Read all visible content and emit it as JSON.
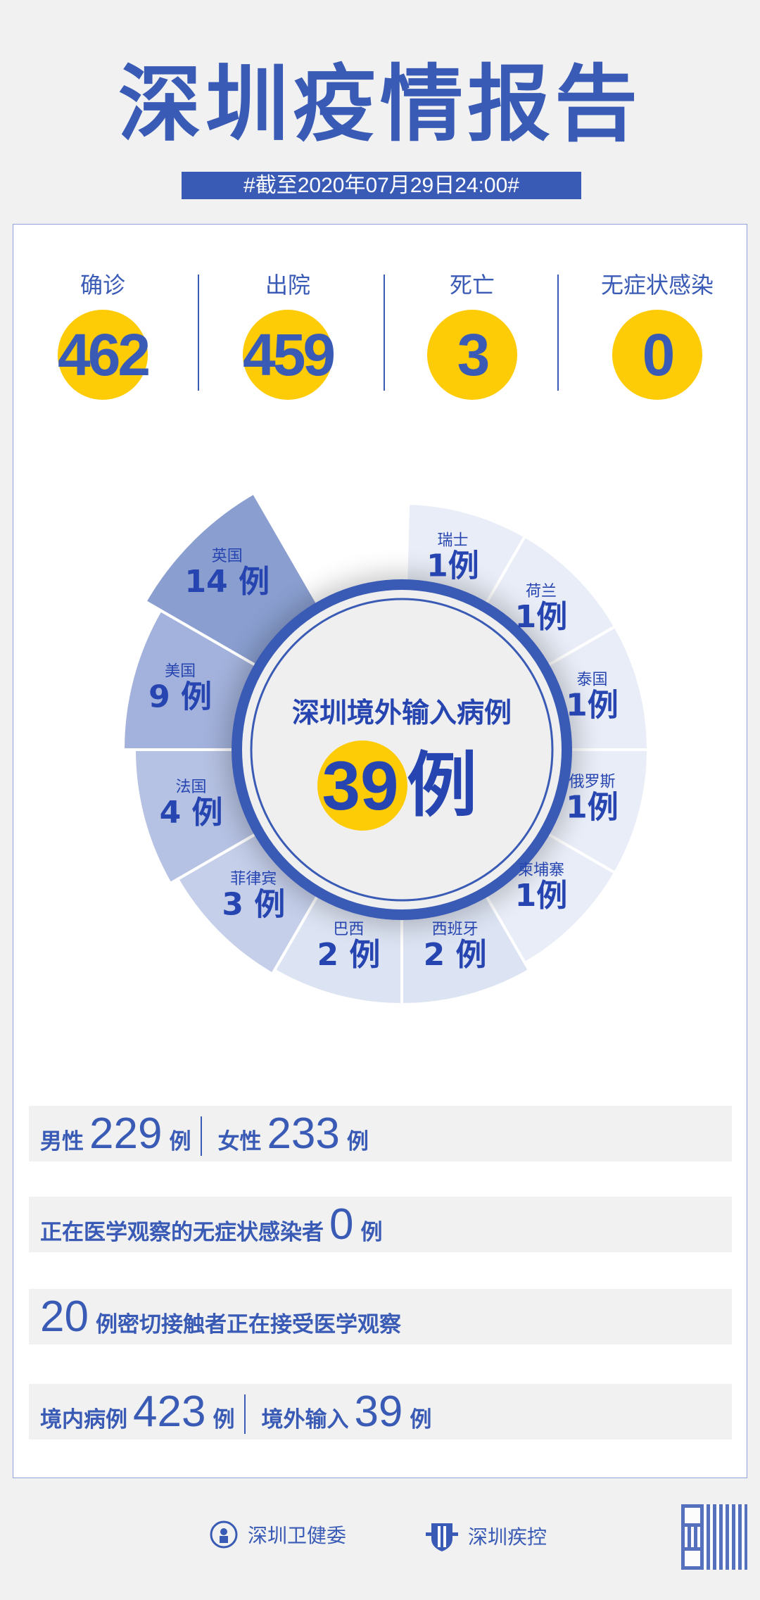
{
  "title": "深圳疫情报告",
  "date_banner": "#截至2020年07月29日24:00#",
  "stats": [
    {
      "label": "确诊",
      "value": "462"
    },
    {
      "label": "出院",
      "value": "459"
    },
    {
      "label": "死亡",
      "value": "3"
    },
    {
      "label": "无症状感染",
      "value": "0"
    }
  ],
  "imported": {
    "title": "深圳境外输入病例",
    "total": "39",
    "unit": "例",
    "countries": [
      {
        "name": "瑞士",
        "value": 1
      },
      {
        "name": "荷兰",
        "value": 1
      },
      {
        "name": "泰国",
        "value": 1
      },
      {
        "name": "俄罗斯",
        "value": 1
      },
      {
        "name": "柬埔寨",
        "value": 1
      },
      {
        "name": "西班牙",
        "value": 2
      },
      {
        "name": "巴西",
        "value": 2
      },
      {
        "name": "菲律宾",
        "value": 3
      },
      {
        "name": "法国",
        "value": 4
      },
      {
        "name": "美国",
        "value": 9
      },
      {
        "name": "英国",
        "value": 14
      }
    ],
    "colors": {
      "ring": "#3a5bb5",
      "highlight": "#fecb07",
      "text": "#2645b0"
    }
  },
  "rows": {
    "male_label": "男性",
    "male": "229",
    "female_label": "女性",
    "female": "233",
    "unit": "例",
    "asym_label": "正在医学观察的无症状感染者",
    "asym": "0",
    "contacts": "20",
    "contacts_label": "例密切接触者正在接受医学观察",
    "local_label": "境内病例",
    "local": "423",
    "import_label": "境外输入",
    "import": "39"
  },
  "footer": {
    "org1": "深圳卫健委",
    "org2": "深圳疾控"
  }
}
